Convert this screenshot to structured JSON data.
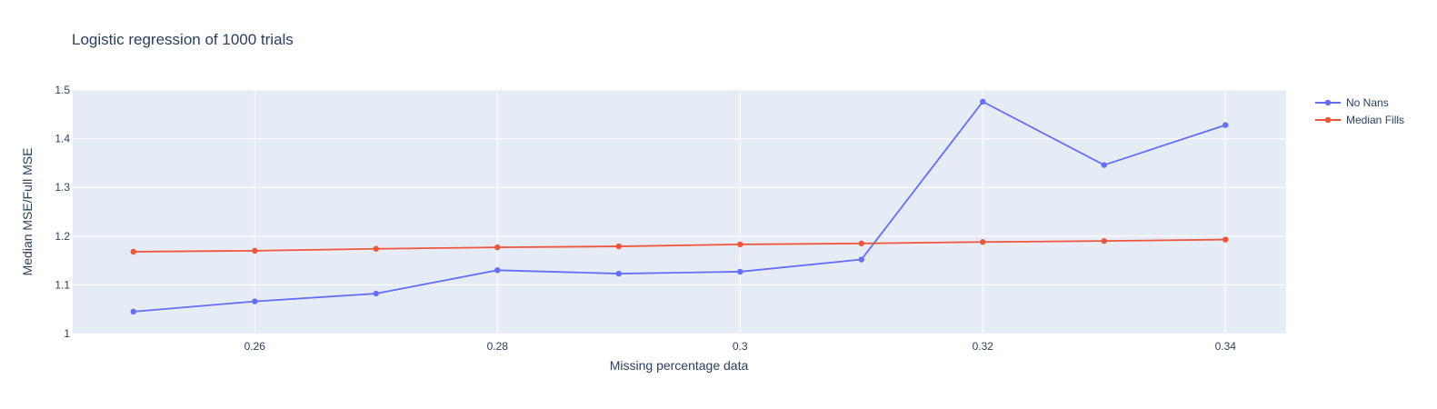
{
  "chart_data": {
    "type": "line",
    "title": "Logistic regression of 1000 trials",
    "xlabel": "Missing percentage data",
    "ylabel": "Median MSE/Full MSE",
    "xlim": [
      0.245,
      0.345
    ],
    "ylim": [
      1.0,
      1.5
    ],
    "x_ticks": [
      "0.26",
      "0.28",
      "0.3",
      "0.32",
      "0.34"
    ],
    "x_tick_values": [
      0.26,
      0.28,
      0.3,
      0.32,
      0.34
    ],
    "y_ticks": [
      "1",
      "1.1",
      "1.2",
      "1.3",
      "1.4",
      "1.5"
    ],
    "y_tick_values": [
      1.0,
      1.1,
      1.2,
      1.3,
      1.4,
      1.5
    ],
    "grid": true,
    "legend_position": "top-right",
    "x": [
      0.25,
      0.26,
      0.27,
      0.28,
      0.29,
      0.3,
      0.31,
      0.32,
      0.33,
      0.34
    ],
    "series": [
      {
        "name": "No Nans",
        "color": "#636efa",
        "values": [
          1.045,
          1.066,
          1.082,
          1.13,
          1.123,
          1.127,
          1.152,
          1.476,
          1.346,
          1.428
        ]
      },
      {
        "name": "Median Fills",
        "color": "#ef553b",
        "values": [
          1.168,
          1.17,
          1.174,
          1.177,
          1.179,
          1.183,
          1.185,
          1.188,
          1.19,
          1.193
        ]
      }
    ]
  }
}
